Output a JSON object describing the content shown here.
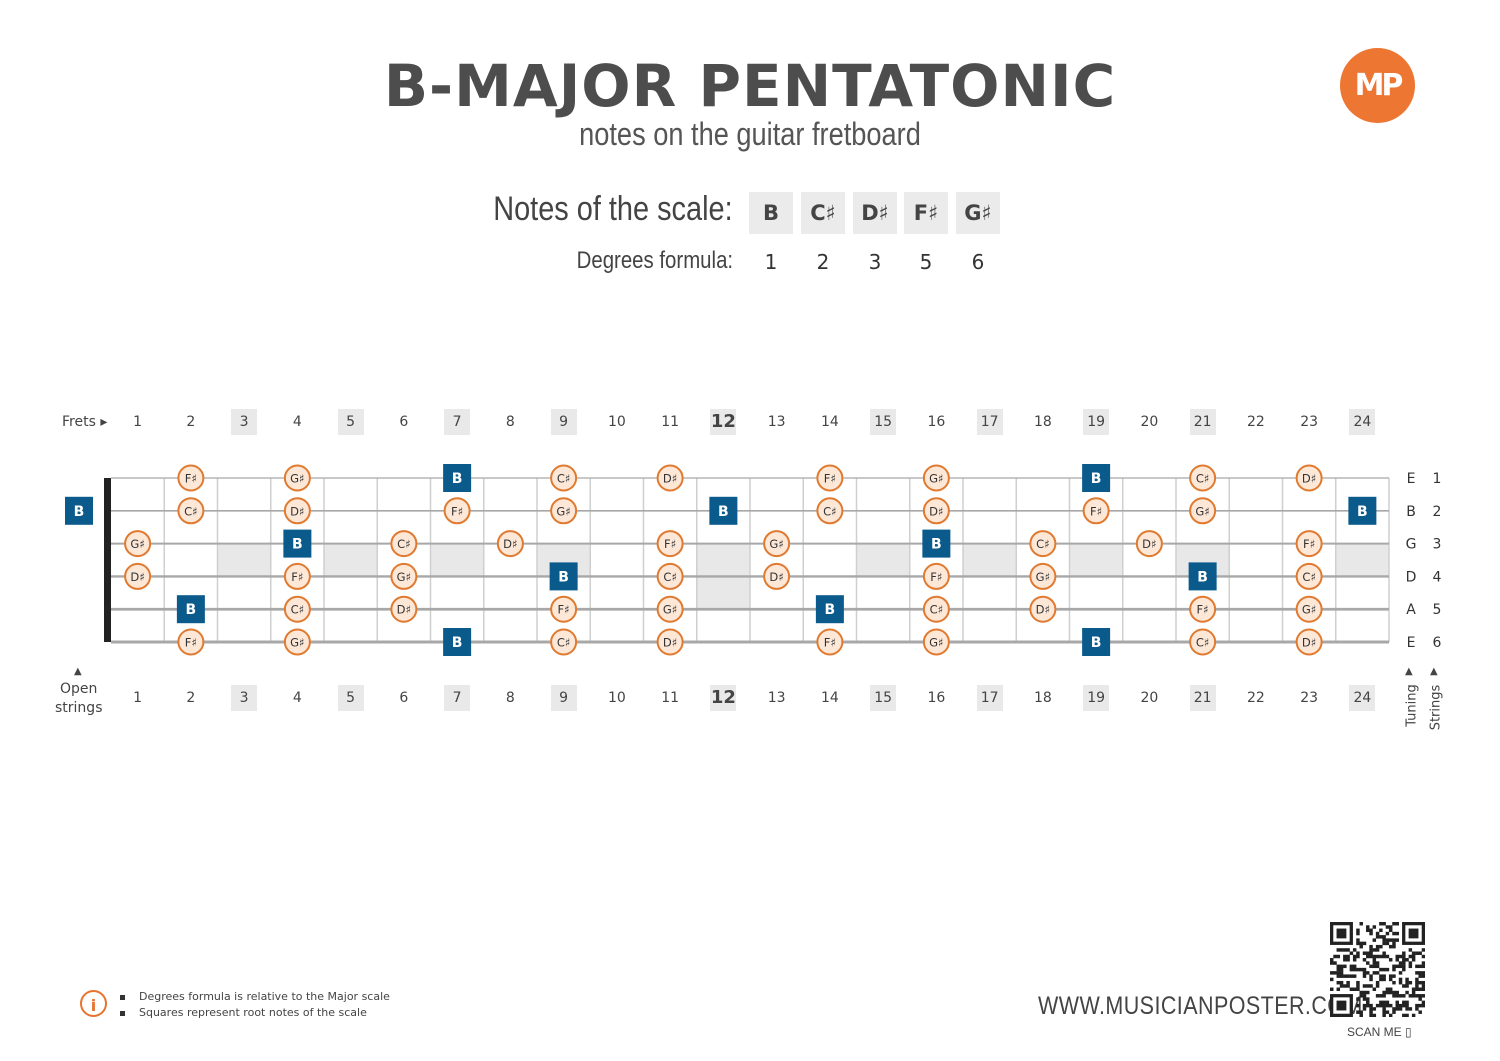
{
  "title": "B-MAJOR PENTATONIC",
  "subtitle": "notes on the guitar fretboard",
  "logo": {
    "text": "MP",
    "color": "#ee7633"
  },
  "scale": {
    "notes_label": "Notes of the scale:",
    "degrees_label": "Degrees formula:",
    "notes": [
      "B",
      "C♯",
      "D♯",
      "F♯",
      "G♯"
    ],
    "degrees": [
      "1",
      "2",
      "3",
      "5",
      "6"
    ]
  },
  "fretboard": {
    "frets_label": "Frets ▸",
    "open_label_1": "Open",
    "open_label_2": "strings",
    "tuning_label": "Tuning",
    "strings_label": "Strings",
    "fret_numbers": [
      "1",
      "2",
      "3",
      "4",
      "5",
      "6",
      "7",
      "8",
      "9",
      "10",
      "11",
      "12",
      "13",
      "14",
      "15",
      "16",
      "17",
      "18",
      "19",
      "20",
      "21",
      "22",
      "23",
      "24"
    ],
    "highlighted_frets": [
      3,
      5,
      7,
      9,
      12,
      15,
      17,
      19,
      21,
      24
    ],
    "bold_frets": [
      12
    ],
    "tuning": [
      "E",
      "B",
      "G",
      "D",
      "A",
      "E"
    ],
    "string_numbers": [
      "1",
      "2",
      "3",
      "4",
      "5",
      "6"
    ],
    "open_notes": [
      {
        "string": 2,
        "note": "B",
        "root": true
      }
    ],
    "colors": {
      "root": "#0b5a8c",
      "note_border": "#e07a30",
      "note_fill": "#fde8d8",
      "inlay": "#e8e8e8"
    },
    "notes": [
      {
        "string": 1,
        "fret": 2,
        "note": "F♯"
      },
      {
        "string": 1,
        "fret": 4,
        "note": "G♯"
      },
      {
        "string": 1,
        "fret": 7,
        "note": "B",
        "root": true
      },
      {
        "string": 1,
        "fret": 9,
        "note": "C♯"
      },
      {
        "string": 1,
        "fret": 11,
        "note": "D♯"
      },
      {
        "string": 1,
        "fret": 14,
        "note": "F♯"
      },
      {
        "string": 1,
        "fret": 16,
        "note": "G♯"
      },
      {
        "string": 1,
        "fret": 19,
        "note": "B",
        "root": true
      },
      {
        "string": 1,
        "fret": 21,
        "note": "C♯"
      },
      {
        "string": 1,
        "fret": 23,
        "note": "D♯"
      },
      {
        "string": 2,
        "fret": 2,
        "note": "C♯"
      },
      {
        "string": 2,
        "fret": 4,
        "note": "D♯"
      },
      {
        "string": 2,
        "fret": 7,
        "note": "F♯"
      },
      {
        "string": 2,
        "fret": 9,
        "note": "G♯"
      },
      {
        "string": 2,
        "fret": 12,
        "note": "B",
        "root": true
      },
      {
        "string": 2,
        "fret": 14,
        "note": "C♯"
      },
      {
        "string": 2,
        "fret": 16,
        "note": "D♯"
      },
      {
        "string": 2,
        "fret": 19,
        "note": "F♯"
      },
      {
        "string": 2,
        "fret": 21,
        "note": "G♯"
      },
      {
        "string": 2,
        "fret": 24,
        "note": "B",
        "root": true
      },
      {
        "string": 3,
        "fret": 1,
        "note": "G♯"
      },
      {
        "string": 3,
        "fret": 4,
        "note": "B",
        "root": true
      },
      {
        "string": 3,
        "fret": 6,
        "note": "C♯"
      },
      {
        "string": 3,
        "fret": 8,
        "note": "D♯"
      },
      {
        "string": 3,
        "fret": 11,
        "note": "F♯"
      },
      {
        "string": 3,
        "fret": 13,
        "note": "G♯"
      },
      {
        "string": 3,
        "fret": 16,
        "note": "B",
        "root": true
      },
      {
        "string": 3,
        "fret": 18,
        "note": "C♯"
      },
      {
        "string": 3,
        "fret": 20,
        "note": "D♯"
      },
      {
        "string": 3,
        "fret": 23,
        "note": "F♯"
      },
      {
        "string": 4,
        "fret": 1,
        "note": "D♯"
      },
      {
        "string": 4,
        "fret": 4,
        "note": "F♯"
      },
      {
        "string": 4,
        "fret": 6,
        "note": "G♯"
      },
      {
        "string": 4,
        "fret": 9,
        "note": "B",
        "root": true
      },
      {
        "string": 4,
        "fret": 11,
        "note": "C♯"
      },
      {
        "string": 4,
        "fret": 13,
        "note": "D♯"
      },
      {
        "string": 4,
        "fret": 16,
        "note": "F♯"
      },
      {
        "string": 4,
        "fret": 18,
        "note": "G♯"
      },
      {
        "string": 4,
        "fret": 21,
        "note": "B",
        "root": true
      },
      {
        "string": 4,
        "fret": 23,
        "note": "C♯"
      },
      {
        "string": 5,
        "fret": 2,
        "note": "B",
        "root": true
      },
      {
        "string": 5,
        "fret": 4,
        "note": "C♯"
      },
      {
        "string": 5,
        "fret": 6,
        "note": "D♯"
      },
      {
        "string": 5,
        "fret": 9,
        "note": "F♯"
      },
      {
        "string": 5,
        "fret": 11,
        "note": "G♯"
      },
      {
        "string": 5,
        "fret": 14,
        "note": "B",
        "root": true
      },
      {
        "string": 5,
        "fret": 16,
        "note": "C♯"
      },
      {
        "string": 5,
        "fret": 18,
        "note": "D♯"
      },
      {
        "string": 5,
        "fret": 21,
        "note": "F♯"
      },
      {
        "string": 5,
        "fret": 23,
        "note": "G♯"
      },
      {
        "string": 6,
        "fret": 2,
        "note": "F♯"
      },
      {
        "string": 6,
        "fret": 4,
        "note": "G♯"
      },
      {
        "string": 6,
        "fret": 7,
        "note": "B",
        "root": true
      },
      {
        "string": 6,
        "fret": 9,
        "note": "C♯"
      },
      {
        "string": 6,
        "fret": 11,
        "note": "D♯"
      },
      {
        "string": 6,
        "fret": 14,
        "note": "F♯"
      },
      {
        "string": 6,
        "fret": 16,
        "note": "G♯"
      },
      {
        "string": 6,
        "fret": 19,
        "note": "B",
        "root": true
      },
      {
        "string": 6,
        "fret": 21,
        "note": "C♯"
      },
      {
        "string": 6,
        "fret": 23,
        "note": "D♯"
      }
    ]
  },
  "footer": {
    "info_icon": "info-icon",
    "note1": "Degrees formula is relative to the Major scale",
    "note2": "Squares represent root notes of the scale",
    "website": "WWW.MUSICIANPOSTER.COM",
    "scan_label": "SCAN ME"
  }
}
